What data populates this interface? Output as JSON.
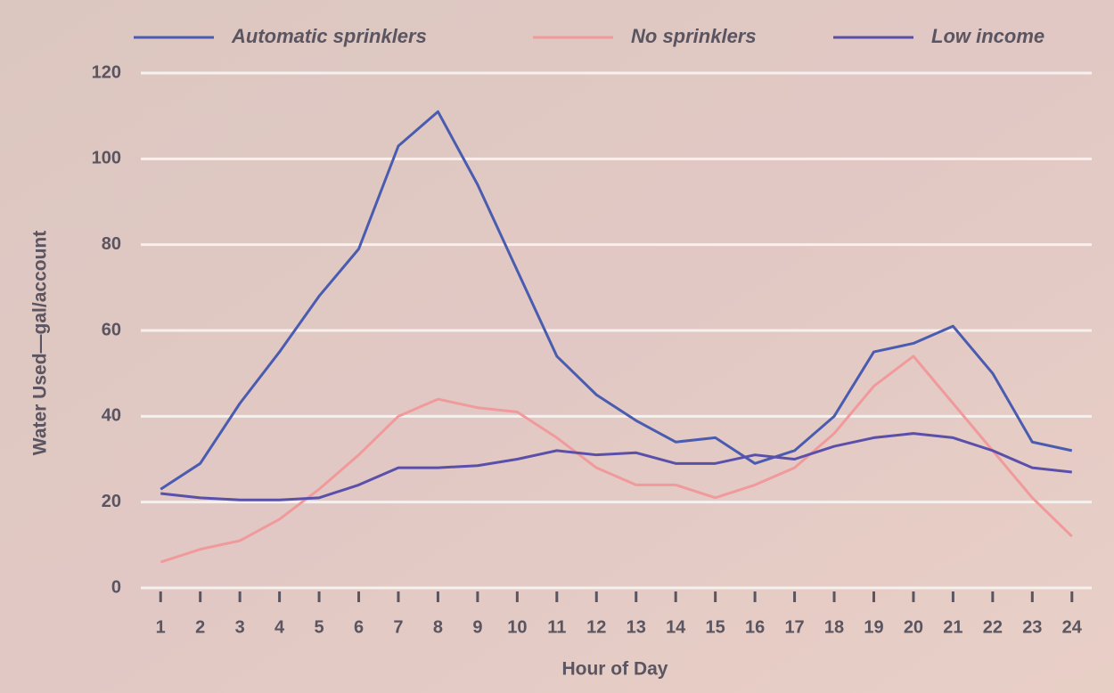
{
  "chart_data": {
    "type": "line",
    "x_label": "Hour of Day",
    "y_label": "Water Used—gal/account",
    "x": [
      1,
      2,
      3,
      4,
      5,
      6,
      7,
      8,
      9,
      10,
      11,
      12,
      13,
      14,
      15,
      16,
      17,
      18,
      19,
      20,
      21,
      22,
      23,
      24
    ],
    "xlim": [
      0.5,
      24.5
    ],
    "xticks": [
      1,
      2,
      3,
      4,
      5,
      6,
      7,
      8,
      9,
      10,
      11,
      12,
      13,
      14,
      15,
      16,
      17,
      18,
      19,
      20,
      21,
      22,
      23,
      24
    ],
    "ylim": [
      0,
      120
    ],
    "yticks": [
      0,
      20,
      40,
      60,
      80,
      100,
      120
    ],
    "grid": true,
    "legend": "top",
    "series": [
      {
        "name": "Automatic sprinklers",
        "color": "#4a5cb0",
        "values": [
          23,
          29,
          43,
          55,
          68,
          79,
          103,
          111,
          94,
          74,
          54,
          45,
          39,
          34,
          35,
          29,
          32,
          40,
          55,
          57,
          61,
          50,
          34,
          32
        ]
      },
      {
        "name": "No sprinklers",
        "color": "#f09a9c",
        "values": [
          6,
          9,
          11,
          16,
          23,
          31,
          40,
          44,
          42,
          41,
          35,
          28,
          24,
          24,
          21,
          24,
          28,
          36,
          47,
          54,
          43,
          32,
          21,
          12
        ]
      },
      {
        "name": "Low income",
        "color": "#5a50aa",
        "values": [
          22,
          21,
          20.5,
          20.5,
          21,
          24,
          28,
          28,
          28.5,
          30,
          32,
          31,
          31.5,
          29,
          29,
          31,
          30,
          33,
          35,
          36,
          35,
          32,
          28,
          27
        ]
      }
    ]
  }
}
